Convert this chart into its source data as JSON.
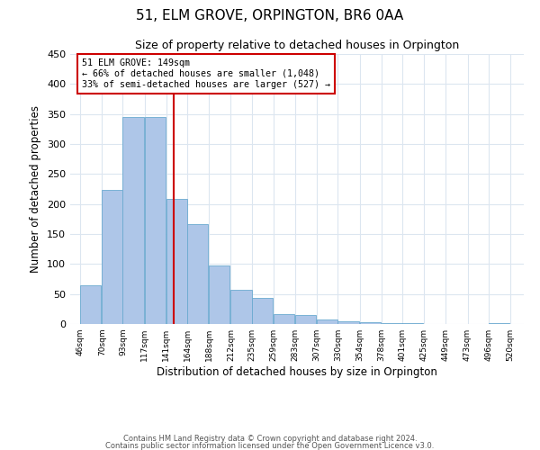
{
  "title": "51, ELM GROVE, ORPINGTON, BR6 0AA",
  "subtitle": "Size of property relative to detached houses in Orpington",
  "xlabel": "Distribution of detached houses by size in Orpington",
  "ylabel": "Number of detached properties",
  "bar_color": "#aec6e8",
  "bar_edge_color": "#6baad0",
  "bar_left_edges": [
    46,
    70,
    93,
    117,
    141,
    164,
    188,
    212,
    235,
    259,
    283,
    307,
    330,
    354,
    378,
    401,
    425,
    449,
    473,
    496
  ],
  "bar_heights": [
    65,
    224,
    345,
    345,
    209,
    167,
    98,
    57,
    43,
    16,
    15,
    7,
    5,
    3,
    2,
    1,
    0,
    0,
    0,
    2
  ],
  "bin_width": 23,
  "x_tick_labels": [
    "46sqm",
    "70sqm",
    "93sqm",
    "117sqm",
    "141sqm",
    "164sqm",
    "188sqm",
    "212sqm",
    "235sqm",
    "259sqm",
    "283sqm",
    "307sqm",
    "330sqm",
    "354sqm",
    "378sqm",
    "401sqm",
    "425sqm",
    "449sqm",
    "473sqm",
    "496sqm",
    "520sqm"
  ],
  "x_tick_positions": [
    46,
    70,
    93,
    117,
    141,
    164,
    188,
    212,
    235,
    259,
    283,
    307,
    330,
    354,
    378,
    401,
    425,
    449,
    473,
    496,
    520
  ],
  "ylim": [
    0,
    450
  ],
  "xlim": [
    35,
    535
  ],
  "vline_x": 149,
  "vline_color": "#cc0000",
  "box_text_line1": "51 ELM GROVE: 149sqm",
  "box_text_line2": "← 66% of detached houses are smaller (1,048)",
  "box_text_line3": "33% of semi-detached houses are larger (527) →",
  "box_color": "#cc0000",
  "footnote1": "Contains HM Land Registry data © Crown copyright and database right 2024.",
  "footnote2": "Contains public sector information licensed under the Open Government Licence v3.0.",
  "background_color": "#ffffff",
  "grid_color": "#dce6f0"
}
